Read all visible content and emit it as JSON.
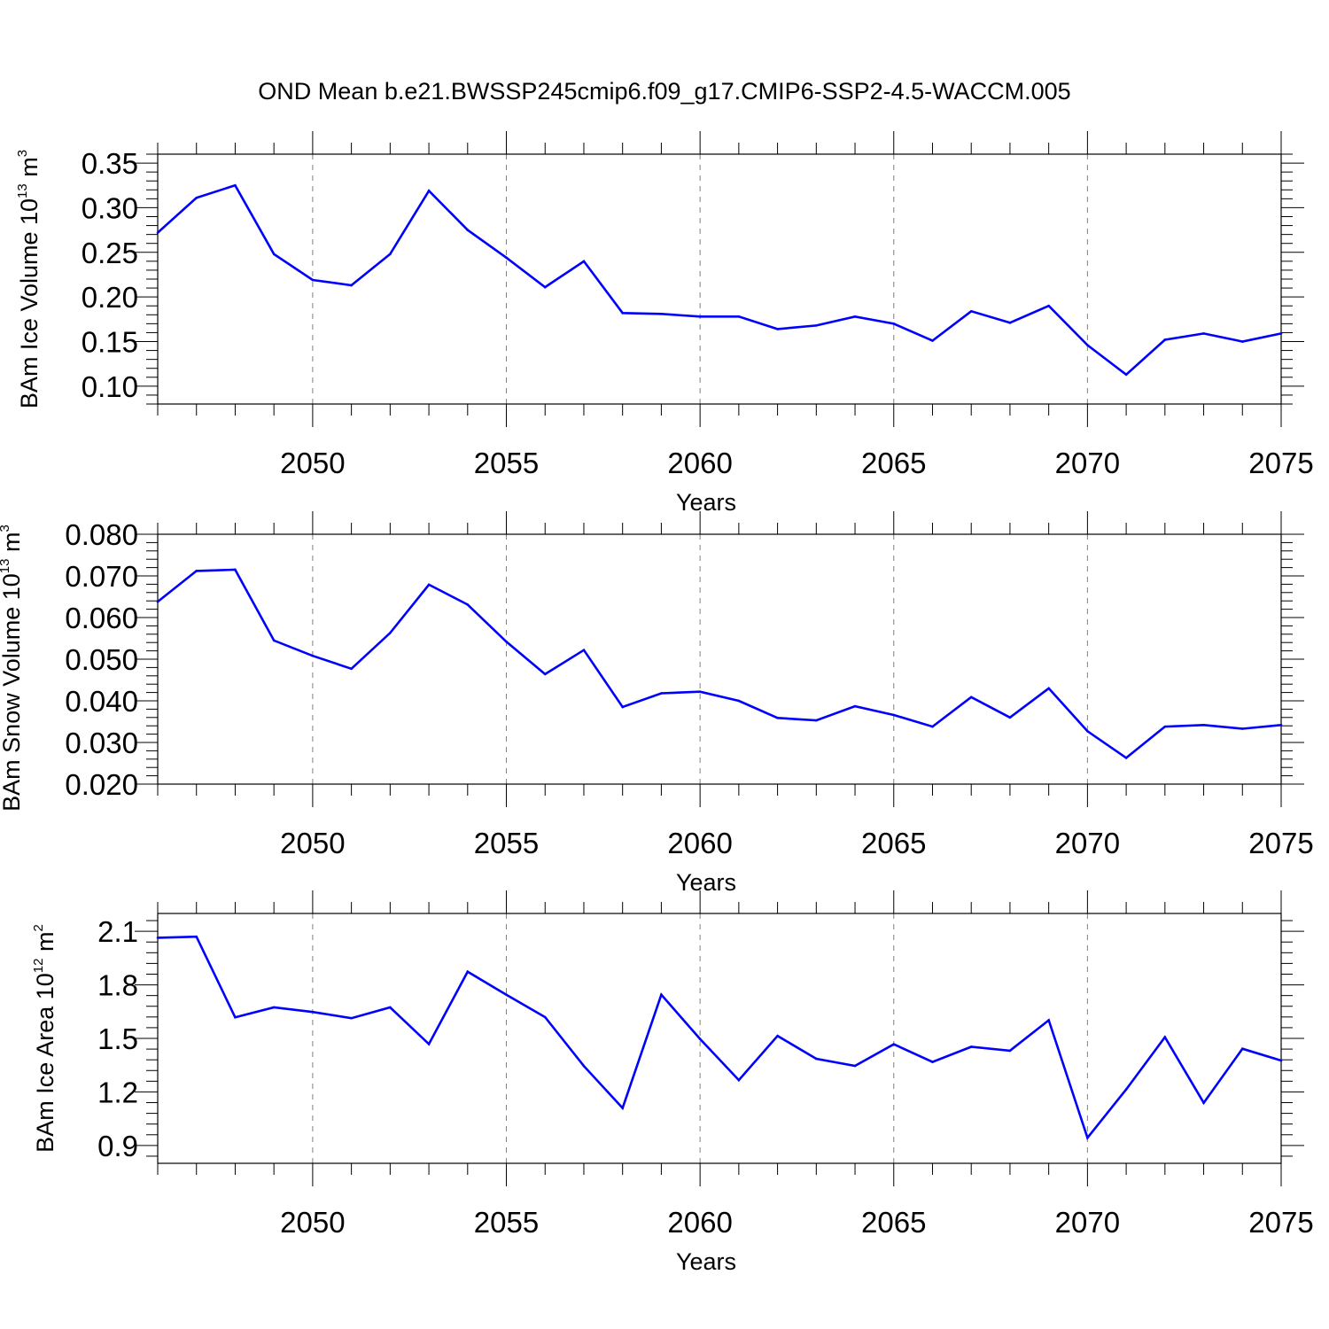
{
  "title": "OND Mean b.e21.BWSSP245cmip6.f09_g17.CMIP6-SSP2-4.5-WACCM.005",
  "colors": {
    "line": "#0000ff",
    "axis": "#000000",
    "grid": "#808080"
  },
  "chart_data": [
    {
      "type": "line",
      "xlabel": "Years",
      "ylabel": {
        "text": "BAm Ice Volume 10",
        "sup": "13",
        "unit": " m",
        "unit_sup": "3"
      },
      "xlim": [
        2046,
        2075
      ],
      "ylim": [
        0.08,
        0.36
      ],
      "yticks": [
        "0.10",
        "0.15",
        "0.20",
        "0.25",
        "0.30",
        "0.35"
      ],
      "xticks": [
        "2050",
        "2055",
        "2060",
        "2065",
        "2070",
        "2075"
      ],
      "grid": "vertical dashed at major x ticks",
      "x": [
        2046,
        2047,
        2048,
        2049,
        2050,
        2051,
        2052,
        2053,
        2054,
        2055,
        2056,
        2057,
        2058,
        2059,
        2060,
        2061,
        2062,
        2063,
        2064,
        2065,
        2066,
        2067,
        2068,
        2069,
        2070,
        2071,
        2072,
        2073,
        2074,
        2075
      ],
      "values": [
        0.272,
        0.311,
        0.325,
        0.248,
        0.219,
        0.213,
        0.248,
        0.319,
        0.275,
        0.244,
        0.211,
        0.24,
        0.182,
        0.181,
        0.178,
        0.178,
        0.164,
        0.168,
        0.178,
        0.17,
        0.151,
        0.184,
        0.171,
        0.19,
        0.146,
        0.113,
        0.152,
        0.159,
        0.15,
        0.159
      ]
    },
    {
      "type": "line",
      "xlabel": "Years",
      "ylabel": {
        "text": "BAm Snow Volume 10",
        "sup": "13",
        "unit": " m",
        "unit_sup": "3"
      },
      "xlim": [
        2046,
        2075
      ],
      "ylim": [
        0.02,
        0.08
      ],
      "yticks": [
        "0.020",
        "0.030",
        "0.040",
        "0.050",
        "0.060",
        "0.070",
        "0.080"
      ],
      "xticks": [
        "2050",
        "2055",
        "2060",
        "2065",
        "2070",
        "2075"
      ],
      "grid": "vertical dashed at major x ticks",
      "x": [
        2046,
        2047,
        2048,
        2049,
        2050,
        2051,
        2052,
        2053,
        2054,
        2055,
        2056,
        2057,
        2058,
        2059,
        2060,
        2061,
        2062,
        2063,
        2064,
        2065,
        2066,
        2067,
        2068,
        2069,
        2070,
        2071,
        2072,
        2073,
        2074,
        2075
      ],
      "values": [
        0.0638,
        0.0712,
        0.0715,
        0.0545,
        0.0508,
        0.0477,
        0.0563,
        0.0679,
        0.0631,
        0.0542,
        0.0464,
        0.0522,
        0.0385,
        0.0418,
        0.0422,
        0.04,
        0.0359,
        0.0353,
        0.0387,
        0.0366,
        0.0338,
        0.0409,
        0.036,
        0.043,
        0.0327,
        0.0263,
        0.0338,
        0.0342,
        0.0333,
        0.0342
      ]
    },
    {
      "type": "line",
      "xlabel": "Years",
      "ylabel": {
        "text": "BAm Ice Area 10",
        "sup": "12",
        "unit": " m",
        "unit_sup": "2"
      },
      "xlim": [
        2046,
        2075
      ],
      "ylim": [
        0.8,
        2.2
      ],
      "yticks": [
        "0.9",
        "1.2",
        "1.5",
        "1.8",
        "2.1"
      ],
      "xticks": [
        "2050",
        "2055",
        "2060",
        "2065",
        "2070",
        "2075"
      ],
      "grid": "vertical dashed at major x ticks",
      "x": [
        2046,
        2047,
        2048,
        2049,
        2050,
        2051,
        2052,
        2053,
        2054,
        2055,
        2056,
        2057,
        2058,
        2059,
        2060,
        2061,
        2062,
        2063,
        2064,
        2065,
        2066,
        2067,
        2068,
        2069,
        2070,
        2071,
        2072,
        2073,
        2074,
        2075
      ],
      "values": [
        2.064,
        2.07,
        1.618,
        1.674,
        1.648,
        1.613,
        1.674,
        1.468,
        1.874,
        1.745,
        1.619,
        1.345,
        1.11,
        1.745,
        1.497,
        1.266,
        1.514,
        1.386,
        1.346,
        1.467,
        1.368,
        1.453,
        1.431,
        1.602,
        0.943,
        1.214,
        1.507,
        1.139,
        1.442,
        1.376
      ]
    }
  ]
}
